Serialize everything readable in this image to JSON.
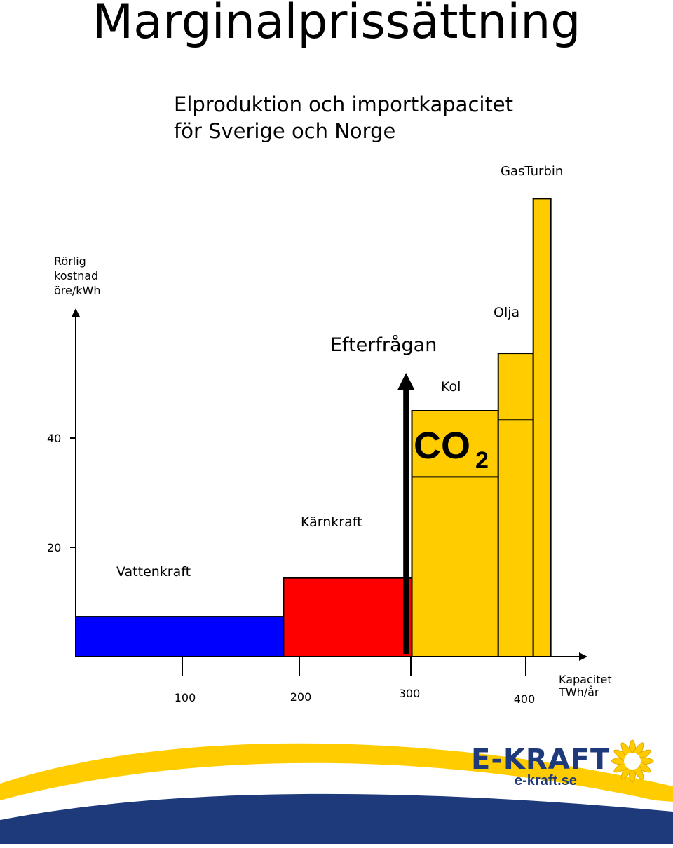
{
  "title": "Marginalprissättning",
  "subtitle": [
    "Elproduktion och importkapacitet",
    "för Sverige och Norge"
  ],
  "colors": {
    "vattenkraft": "#0000ff",
    "karnkraft": "#ff0000",
    "fossil": "#ffcc00",
    "border": "#000000",
    "brand_blue": "#1f3a7a",
    "brand_yellow": "#ffcc00"
  },
  "chart_data": {
    "type": "bar",
    "ylabel": [
      "Rörlig",
      "kostnad",
      "öre/kWh"
    ],
    "xlabel": [
      "Kapacitet",
      "TWh/år"
    ],
    "yticks": [
      20,
      40
    ],
    "xticks": [
      100,
      200,
      300,
      400
    ],
    "xlim": [
      0,
      385
    ],
    "ylim": [
      0,
      63
    ],
    "blocks": [
      {
        "label": "Vattenkraft",
        "x0": 0,
        "x1": 178,
        "y": 7.3,
        "color": "#0000ff"
      },
      {
        "label": "Kärnkraft",
        "x0": 178,
        "x1": 288,
        "y": 14.4,
        "color": "#ff0000"
      },
      {
        "label": "Kol",
        "x0": 288,
        "x1": 362,
        "y": 45,
        "split": 32.9,
        "color": "#ffcc00",
        "annotation": "CO",
        "annotation_sub": "2"
      },
      {
        "label": "Olja",
        "x0": 362,
        "x1": 392,
        "y": 55.5,
        "split": 43.3,
        "color": "#ffcc00"
      },
      {
        "label": "GasTurbin",
        "x0": 392,
        "x1": 407,
        "y": 83.8,
        "color": "#ffcc00"
      }
    ],
    "demand": {
      "label": "Efterfrågan",
      "x": 283
    }
  },
  "footer": {
    "brand": "E-KRAFT",
    "url": "e-kraft.se"
  }
}
